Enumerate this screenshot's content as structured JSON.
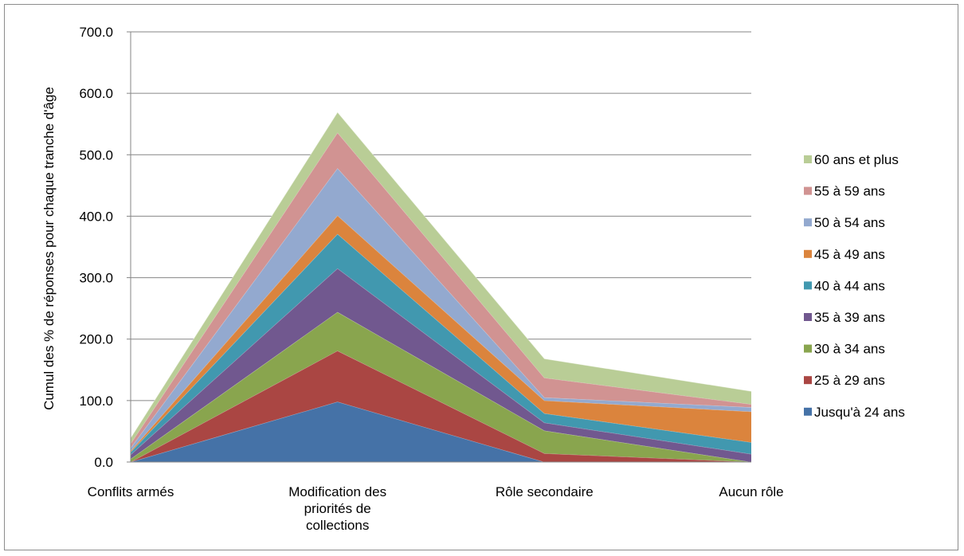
{
  "chart_data": {
    "type": "area",
    "stacked": true,
    "title": "",
    "xlabel": "",
    "ylabel": "Cumul des % de réponses pour chaque tranche d'âge",
    "ylim": [
      0,
      700
    ],
    "yticks": [
      "0.0",
      "100.0",
      "200.0",
      "300.0",
      "400.0",
      "500.0",
      "600.0",
      "700.0"
    ],
    "grid": true,
    "legend_position": "right",
    "categories": [
      [
        "Conflits armés"
      ],
      [
        "Modification des",
        "priorités de",
        "collections"
      ],
      [
        "Rôle secondaire"
      ],
      [
        "Aucun rôle"
      ]
    ],
    "series": [
      {
        "name": "Jusqu'à 24 ans",
        "color": "#4572a7",
        "values": [
          0,
          98,
          0,
          0
        ]
      },
      {
        "name": "25 à 29 ans",
        "color": "#aa4643",
        "values": [
          0,
          83,
          14,
          0
        ]
      },
      {
        "name": "30 à 34 ans",
        "color": "#89a54e",
        "values": [
          5,
          63,
          37,
          0
        ]
      },
      {
        "name": "35 à 39 ans",
        "color": "#71588f",
        "values": [
          7,
          71,
          13,
          13
        ]
      },
      {
        "name": "40 à 44 ans",
        "color": "#4198af",
        "values": [
          4,
          56,
          15,
          19
        ]
      },
      {
        "name": "45 à 49 ans",
        "color": "#db843d",
        "values": [
          2,
          30,
          21,
          50
        ]
      },
      {
        "name": "50 à 54 ans",
        "color": "#93a9cf",
        "values": [
          5,
          77,
          5,
          7
        ]
      },
      {
        "name": "55 à 59 ans",
        "color": "#d19392",
        "values": [
          7,
          58,
          32,
          5
        ]
      },
      {
        "name": "60 ans et plus",
        "color": "#b9cd96",
        "values": [
          9,
          33,
          31,
          21
        ]
      }
    ]
  }
}
